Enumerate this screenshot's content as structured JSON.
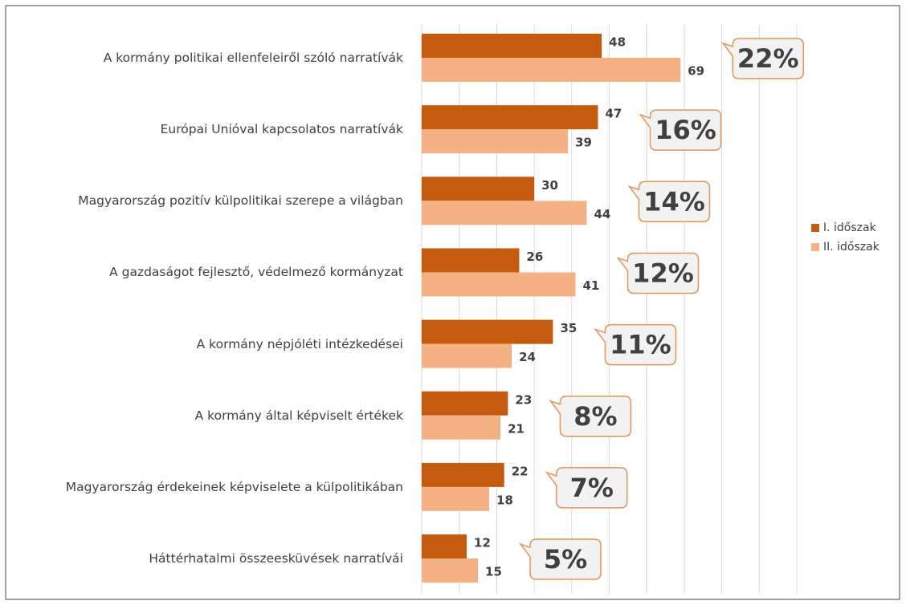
{
  "chart_data": {
    "type": "barh",
    "categories": [
      "A kormány politikai ellenfeleiről szóló narratívák",
      "Európai Unióval kapcsolatos narratívák",
      "Magyarország pozitív külpolitikai szerepe a világban",
      "A gazdaságot fejlesztő, védelmező kormányzat",
      "A kormány népjóléti intézkedései",
      "A kormány által képviselt értékek",
      "Magyarország érdekeinek képviselete a külpolitikában",
      "Háttérhatalmi összeesküvések narratívái"
    ],
    "series": [
      {
        "name": "I. időszak",
        "color": "#c55a11",
        "values": [
          48,
          47,
          30,
          26,
          35,
          23,
          22,
          12
        ]
      },
      {
        "name": "II. időszak",
        "color": "#f4b183",
        "values": [
          69,
          39,
          44,
          41,
          24,
          21,
          18,
          15
        ]
      }
    ],
    "annotations": [
      "22%",
      "16%",
      "14%",
      "12%",
      "11%",
      "8%",
      "7%",
      "5%"
    ],
    "xlim": [
      0,
      100
    ],
    "xticks": [
      0,
      10,
      20,
      30,
      40,
      50,
      60,
      70,
      80,
      90,
      100
    ],
    "grid": true,
    "legend": "right"
  }
}
